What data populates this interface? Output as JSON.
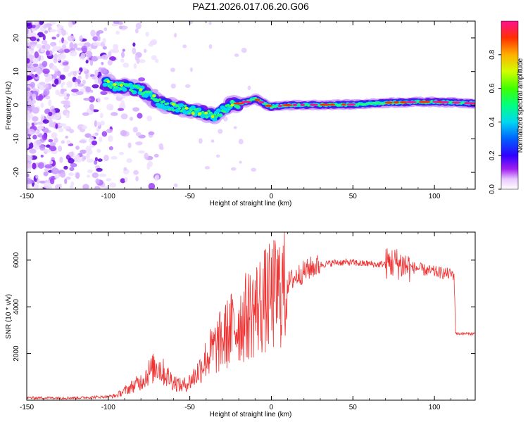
{
  "title": "PAZ1.2026.017.06.20.G06",
  "chart_data": [
    {
      "type": "heatmap",
      "xlabel": "Height of straight line (km)",
      "ylabel": "Frequency (Hz)",
      "xlim": [
        -150,
        125
      ],
      "ylim": [
        -25,
        25
      ],
      "xticks": [
        -150,
        -100,
        -50,
        0,
        50,
        100
      ],
      "yticks": [
        -20,
        -10,
        0,
        10,
        20
      ],
      "colorbar": {
        "label": "Normalized spectral amplitude",
        "range": [
          0,
          1
        ],
        "ticks": [
          "0.0",
          "0.2",
          "0.4",
          "0.6",
          "0.8"
        ]
      },
      "ridge": [
        {
          "x": -100,
          "y": 6.5
        },
        {
          "x": -95,
          "y": 5.5
        },
        {
          "x": -90,
          "y": 5.5
        },
        {
          "x": -85,
          "y": 5
        },
        {
          "x": -80,
          "y": 4.5
        },
        {
          "x": -75,
          "y": 3
        },
        {
          "x": -70,
          "y": 1
        },
        {
          "x": -65,
          "y": 0
        },
        {
          "x": -60,
          "y": -0.5
        },
        {
          "x": -55,
          "y": -1
        },
        {
          "x": -50,
          "y": -1.5
        },
        {
          "x": -45,
          "y": -2
        },
        {
          "x": -40,
          "y": -2.5
        },
        {
          "x": -35,
          "y": -3.5
        },
        {
          "x": -30,
          "y": -1.5
        },
        {
          "x": -25,
          "y": 0
        },
        {
          "x": -20,
          "y": 0.5
        },
        {
          "x": -15,
          "y": 1
        },
        {
          "x": -10,
          "y": 2
        },
        {
          "x": -5,
          "y": 0.5
        },
        {
          "x": 0,
          "y": -0.5
        },
        {
          "x": 10,
          "y": 0
        },
        {
          "x": 50,
          "y": 0.2
        },
        {
          "x": 75,
          "y": 0.8
        },
        {
          "x": 100,
          "y": 1
        },
        {
          "x": 125,
          "y": 0.5
        }
      ]
    },
    {
      "type": "line",
      "xlabel": "Height of straight line (km)",
      "ylabel": "SNR (10 * v/v)",
      "xlim": [
        -150,
        125
      ],
      "ylim": [
        0,
        7200
      ],
      "xticks": [
        -150,
        -100,
        -50,
        0,
        50,
        100
      ],
      "yticks": [
        2000,
        4000,
        6000
      ],
      "series": [
        {
          "name": "SNR",
          "color": "#ee3333",
          "x": [
            -150,
            -120,
            -100,
            -95,
            -90,
            -85,
            -80,
            -75,
            -70,
            -65,
            -60,
            -55,
            -50,
            -45,
            -40,
            -35,
            -30,
            -25,
            -20,
            -15,
            -10,
            -5,
            0,
            5,
            10,
            15,
            20,
            25,
            30,
            35,
            40,
            45,
            50,
            55,
            60,
            65,
            70,
            75,
            80,
            85,
            90,
            95,
            100,
            105,
            110,
            112,
            113,
            114,
            120,
            125
          ],
          "y": [
            100,
            100,
            150,
            200,
            400,
            600,
            800,
            1200,
            1500,
            1100,
            800,
            600,
            800,
            1200,
            1800,
            2200,
            2600,
            3000,
            3300,
            3600,
            3900,
            4200,
            4400,
            4700,
            5000,
            5300,
            5500,
            5700,
            5800,
            5850,
            5900,
            5900,
            5900,
            5850,
            5850,
            5800,
            5850,
            5900,
            5800,
            5700,
            5650,
            5550,
            5500,
            5450,
            5400,
            5380,
            2900,
            2850,
            2850,
            2850
          ]
        }
      ]
    }
  ]
}
